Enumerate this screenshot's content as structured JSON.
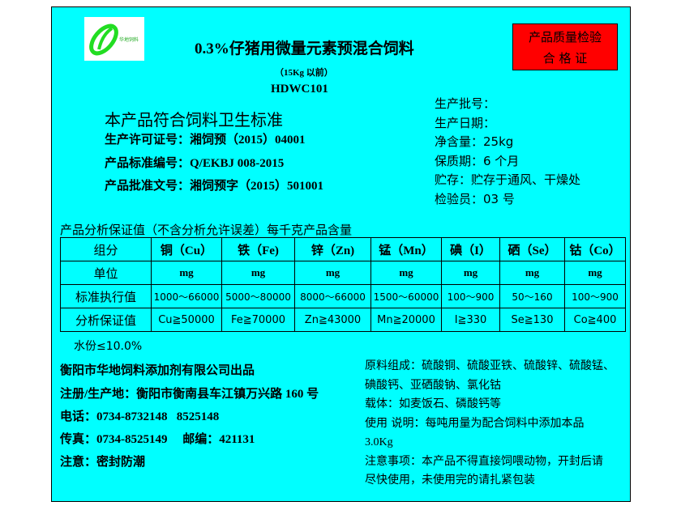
{
  "logo": {
    "text": "华地饲料",
    "color": "#22dd22"
  },
  "title": "0.3%仔猪用微量元素预混合饲料",
  "subtitle": "（15Kg 以前）",
  "code": "HDWC101",
  "certificate": {
    "line1": "产品质量检验",
    "line2": "合 格 证",
    "color": "#ff0000"
  },
  "standard": "本产品符合饲料卫生标准",
  "license": "生产许可证号：湘饲预（2015）04001",
  "std_no": "产品标准编号：Q/EKBJ 008-2015",
  "approval": "产品批准文号：湘饲预字（2015）501001",
  "info": [
    "生产批号：",
    "生产日期：",
    "净含量：25kg",
    "保质期：6 个月",
    "贮存：贮存于通风、干燥处",
    "检验员：03 号"
  ],
  "table_title": "产品分析保证值（不含分析允许误差）每千克产品含量",
  "table": {
    "header": [
      "组分",
      "铜（Cu）",
      "铁（Fe)",
      "锌（Zn)",
      "锰（Mn）",
      "碘（I）",
      "硒（Se）",
      "钴（Co）"
    ],
    "rows": [
      [
        "单位",
        "mg",
        "mg",
        "mg",
        "mg",
        "mg",
        "mg",
        "mg"
      ],
      [
        "标准执行值",
        "1000～66000",
        "5000～80000",
        "8000～66000",
        "1500～60000",
        "100～900",
        "50～160",
        "100～900"
      ],
      [
        "分析保证值",
        "Cu≧50000",
        "Fe≧70000",
        "Zn≧43000",
        "Mn≧20000",
        "I≧330",
        "Se≧130",
        "Co≧400"
      ]
    ]
  },
  "moisture": "水份≤10.0%",
  "company": "衡阳市华地饲料添加剂有限公司出品",
  "address": "注册/生产地：衡阳市衡南县车江镇万兴路 160 号",
  "phone": "电话：0734-8732148   8525148",
  "fax": "传真：0734-8525149     邮编：421131",
  "note": "注意：密封防潮",
  "ingredients": [
    "原料组成：硫酸铜、硫酸亚铁、硫酸锌、硫酸锰、",
    "碘酸钙、亚硒酸钠、氯化钴",
    "载体：如麦饭石、磷酸钙等",
    "使用 说明：每吨用量为配合饲料中添加本品",
    "3.0Kg",
    "注意事项：本产品不得直接饲喂动物，开封后请",
    "尽快使用，未使用完的请扎紧包装"
  ]
}
